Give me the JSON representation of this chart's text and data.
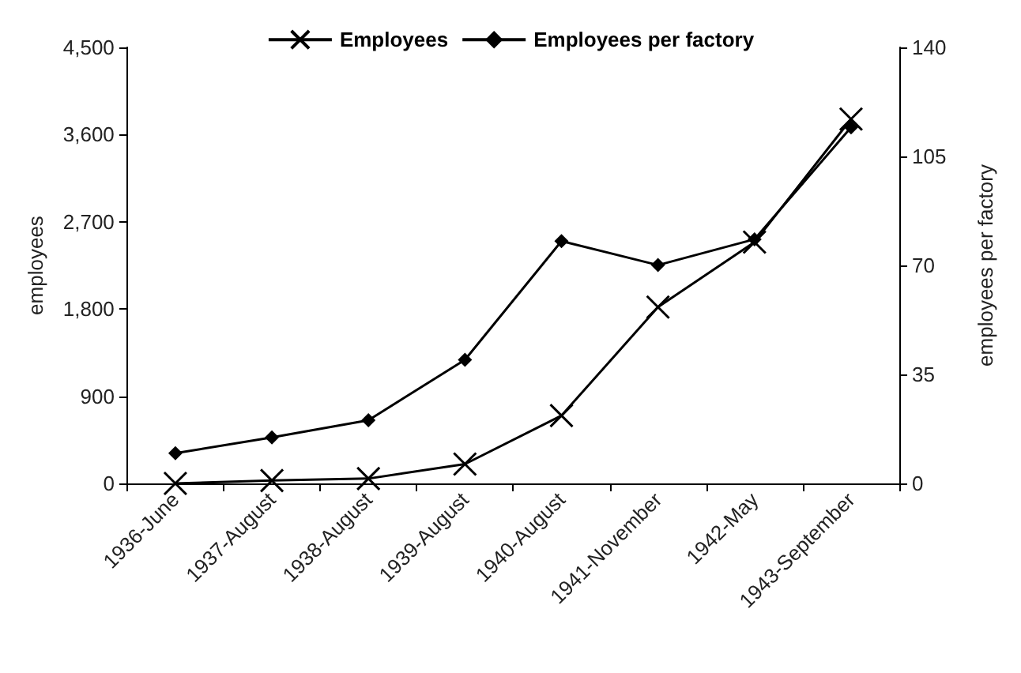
{
  "chart_data": {
    "type": "line",
    "categories": [
      "1936-June",
      "1937-August",
      "1938-August",
      "1939-August",
      "1940-August",
      "1941-November",
      "1942-May",
      "1943-September"
    ],
    "series": [
      {
        "name": "Employees",
        "color": "#000000",
        "marker": "cross",
        "values": [
          0,
          30,
          50,
          200,
          700,
          1820,
          2490,
          3760
        ]
      },
      {
        "name": "Employees per factory",
        "color": "#000000",
        "marker": "diamond",
        "axis": "y2",
        "values": [
          9.7,
          14.8,
          20.3,
          39.7,
          77.8,
          70.1,
          78.4,
          114.3
        ]
      }
    ],
    "ylabel": "employees",
    "y2label": "employees per factory",
    "ylim": [
      0,
      4500
    ],
    "yticks": [
      {
        "value": 0,
        "label": "0"
      },
      {
        "value": 900,
        "label": "900"
      },
      {
        "value": 1800,
        "label": "1,800"
      },
      {
        "value": 2700,
        "label": "2,700"
      },
      {
        "value": 3600,
        "label": "3,600"
      },
      {
        "value": 4500,
        "label": "4,500"
      }
    ],
    "y2lim": [
      0,
      140
    ],
    "y2ticks": [
      0,
      35,
      70,
      105,
      140
    ],
    "legend": "top",
    "grid": false,
    "line_style": "solid"
  }
}
